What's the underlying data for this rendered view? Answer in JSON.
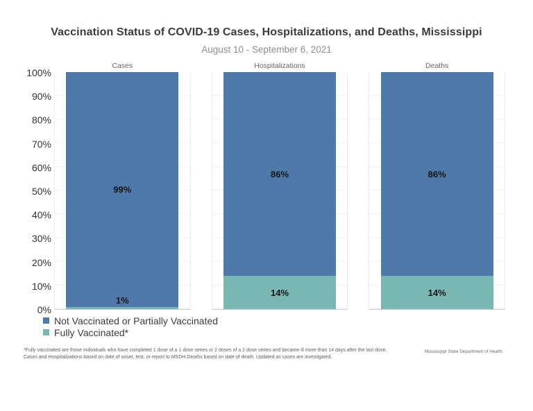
{
  "header": {
    "title": "Vaccination Status of COVID-19 Cases, Hospitalizations, and Deaths, Mississippi",
    "subtitle": "August 10 - September 6, 2021"
  },
  "chart_data": {
    "type": "bar",
    "stacked": true,
    "orientation": "vertical",
    "title": "Vaccination Status of COVID-19 Cases, Hospitalizations, and Deaths, Mississippi",
    "subtitle": "August 10 - September 6, 2021",
    "categories": [
      "Cases",
      "Hospitalizations",
      "Deaths"
    ],
    "series": [
      {
        "name": "Not Vaccinated or Partially Vaccinated",
        "color": "#4e79a8",
        "values": [
          99,
          86,
          86
        ],
        "labels": [
          "99%",
          "86%",
          "86%"
        ]
      },
      {
        "name": "Fully Vaccinated*",
        "color": "#79b7b2",
        "values": [
          1,
          14,
          14
        ],
        "labels": [
          "1%",
          "14%",
          "14%"
        ]
      }
    ],
    "y_ticks": [
      "0%",
      "10%",
      "20%",
      "30%",
      "40%",
      "50%",
      "60%",
      "70%",
      "80%",
      "90%",
      "100%"
    ],
    "ylim": [
      0,
      100
    ],
    "grid": true,
    "legend_position": "bottom-left"
  },
  "legend": {
    "items": [
      {
        "label": "Not Vaccinated or Partially Vaccinated",
        "color": "#4e79a8"
      },
      {
        "label": "Fully Vaccinated*",
        "color": "#79b7b2"
      }
    ]
  },
  "footnotes": {
    "line1": "*Fully vaccinated are those individuals who have completed 1 dose of a 1 dose series or 2 doses of a 2 dose series and became ill more than 14 days after the last dose.",
    "line2": "Cases and Hospitalizations based on date of onset, test, or report to MSDH.Deaths based on date of death. Updated as cases are investigated."
  },
  "source": "Mississippi State Department of Health"
}
